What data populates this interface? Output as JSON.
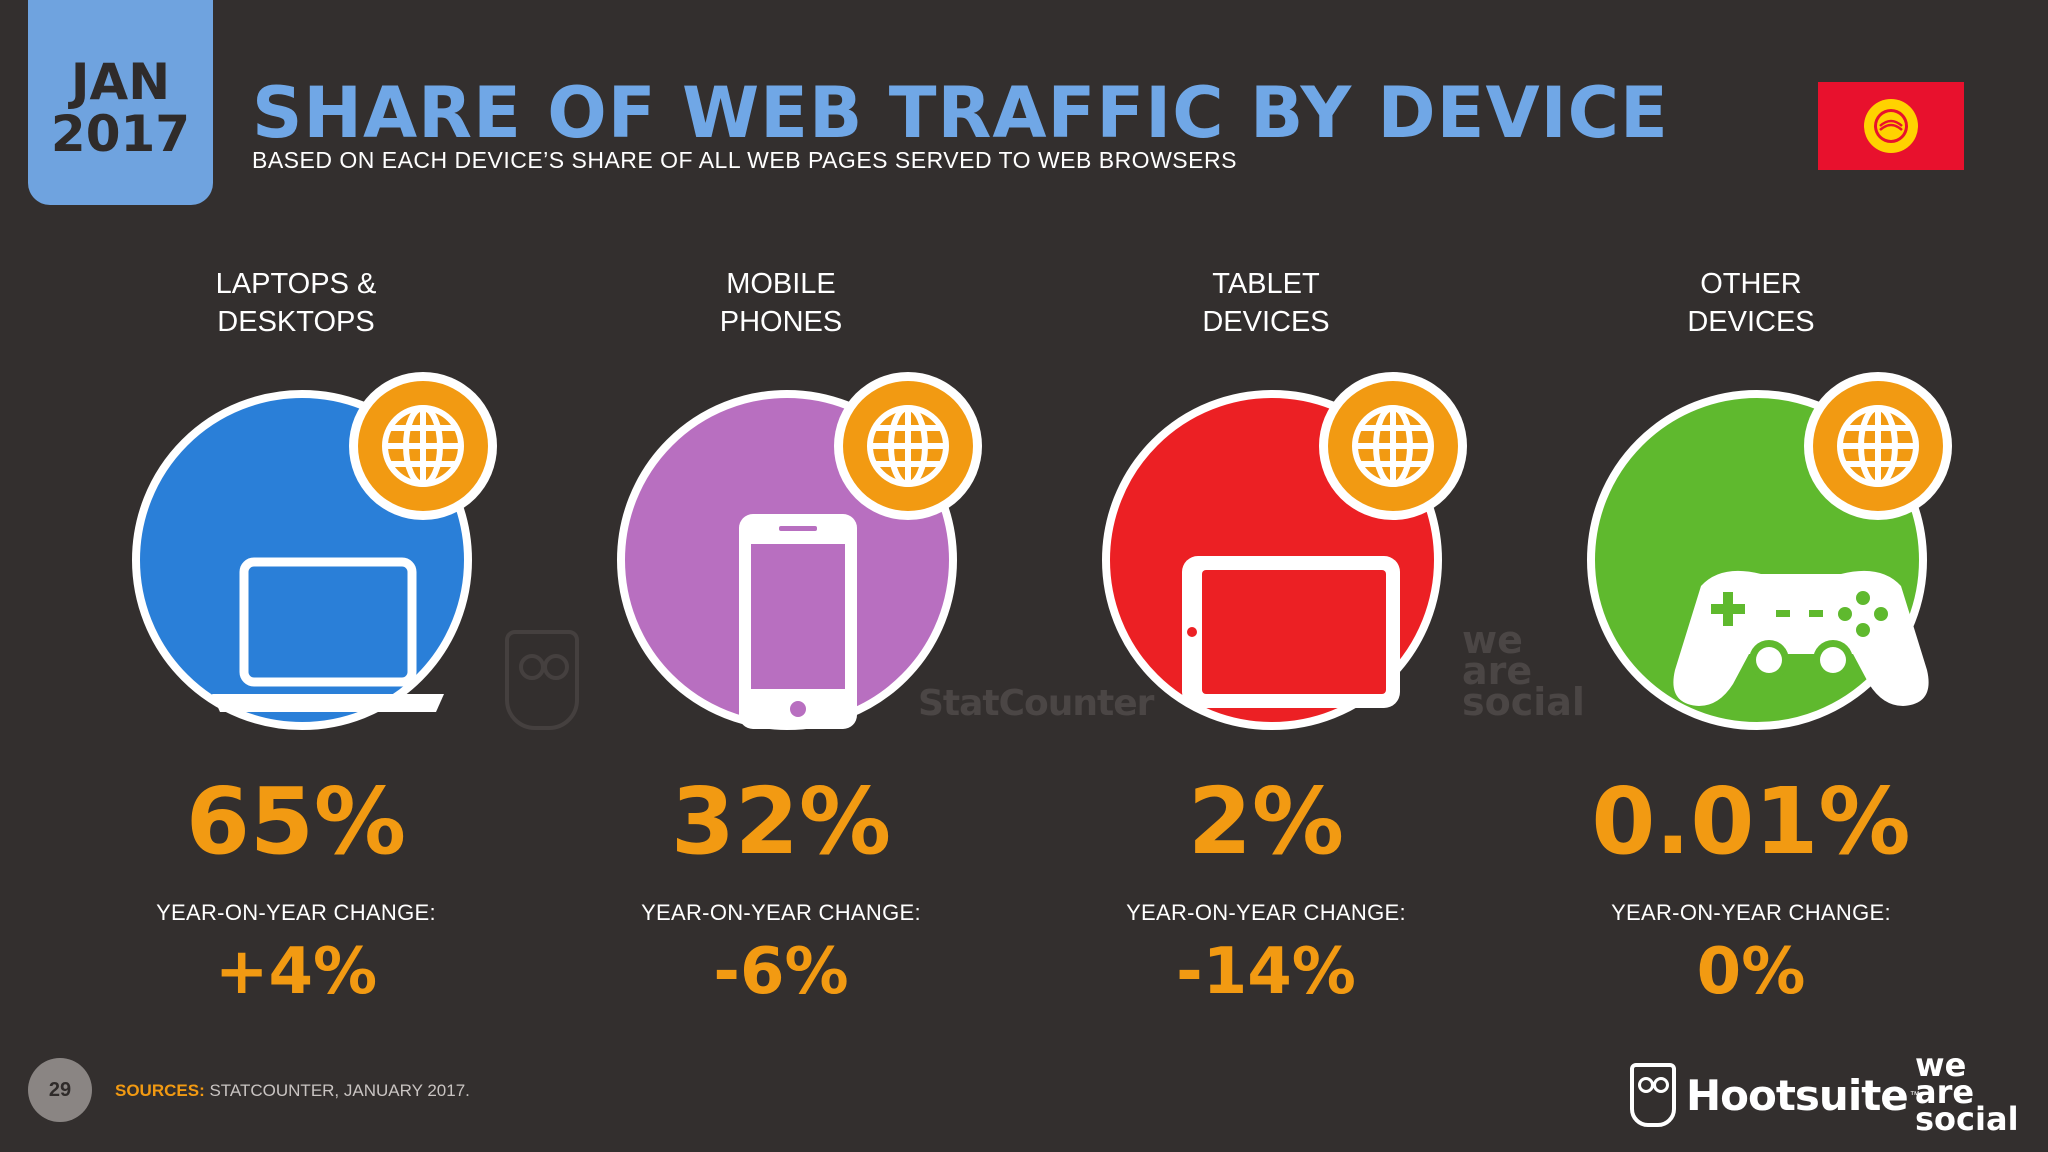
{
  "header": {
    "date_month": "JAN",
    "date_year": "2017",
    "title": "SHARE OF WEB TRAFFIC BY DEVICE",
    "subtitle": "BASED ON EACH DEVICE’S SHARE OF ALL WEB PAGES SERVED TO WEB BROWSERS",
    "flag": "kyrgyzstan-flag"
  },
  "devices": [
    {
      "label_line1": "LAPTOPS &",
      "label_line2": "DESKTOPS",
      "share": "65%",
      "yoy_label": "YEAR-ON-YEAR CHANGE:",
      "yoy": "+4%",
      "color": "#2a7fd8",
      "icon": "laptop-icon"
    },
    {
      "label_line1": "MOBILE",
      "label_line2": "PHONES",
      "share": "32%",
      "yoy_label": "YEAR-ON-YEAR CHANGE:",
      "yoy": "-6%",
      "color": "#b86fc0",
      "icon": "mobile-phone-icon"
    },
    {
      "label_line1": "TABLET",
      "label_line2": "DEVICES",
      "share": "2%",
      "yoy_label": "YEAR-ON-YEAR CHANGE:",
      "yoy": "-14%",
      "color": "#ec2024",
      "icon": "tablet-icon"
    },
    {
      "label_line1": "OTHER",
      "label_line2": "DEVICES",
      "share": "0.01%",
      "yoy_label": "YEAR-ON-YEAR CHANGE:",
      "yoy": "0%",
      "color": "#5fb92e",
      "icon": "game-controller-icon"
    }
  ],
  "watermarks": {
    "statcounter": "StatCounter",
    "was_line1": "we",
    "was_line2": "are",
    "was_line3": "social"
  },
  "footer": {
    "page_number": "29",
    "sources_label": "SOURCES:",
    "sources_text": " STATCOUNTER, JANUARY 2017.",
    "logo_hootsuite": "Hootsuite",
    "logo_hootsuite_tm": "™",
    "logo_was_line1": "we",
    "logo_was_line2": "are",
    "logo_was_line3": "social"
  },
  "colors": {
    "background": "#332f2e",
    "accent_orange": "#f29a12",
    "title_blue": "#70a7e6"
  }
}
